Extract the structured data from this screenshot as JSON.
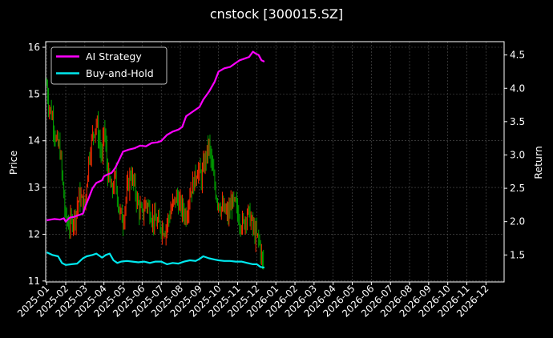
{
  "chart_data": {
    "type": "line",
    "title": "cnstock [300015.SZ]",
    "xlabel": "",
    "ylabel_left": "Price",
    "ylabel_right": "Return",
    "x_ticks": [
      "2025-01",
      "2025-02",
      "2025-03",
      "2025-04",
      "2025-05",
      "2025-06",
      "2025-07",
      "2025-08",
      "2025-09",
      "2025-10",
      "2025-11",
      "2025-12",
      "2026-01",
      "2026-02",
      "2026-03",
      "2026-04",
      "2026-05",
      "2026-06",
      "2026-07",
      "2026-08",
      "2026-09",
      "2026-10",
      "2026-11",
      "2026-12"
    ],
    "y_left_ticks": [
      "11",
      "12",
      "13",
      "14",
      "15",
      "16"
    ],
    "y_left_range": [
      10.98,
      16.12
    ],
    "y_right_ticks": [
      "1.5",
      "2.0",
      "2.5",
      "3.0",
      "3.5",
      "4.0",
      "4.5"
    ],
    "y_right_range": [
      1.095,
      4.7
    ],
    "x_range_months": [
      -0.05,
      23.95
    ],
    "grid": true,
    "legend_position": "upper-left",
    "legend": [
      "AI Strategy",
      "Buy-and-Hold"
    ],
    "colors": {
      "ai_strategy": "#ff00ff",
      "buy_and_hold": "#00e8ee",
      "candle_up": "#ff2a00",
      "candle_down": "#00a400",
      "background": "#000000",
      "grid": "#555555"
    },
    "series": [
      {
        "name": "AI Strategy",
        "axis": "right",
        "x_months": [
          0.0,
          0.4,
          0.7,
          0.9,
          1.0,
          1.2,
          1.4,
          1.7,
          1.9,
          2.0,
          2.2,
          2.4,
          2.6,
          2.9,
          3.0,
          3.2,
          3.4,
          3.6,
          3.8,
          4.0,
          4.3,
          4.6,
          4.9,
          5.2,
          5.5,
          5.8,
          6.0,
          6.3,
          6.6,
          6.9,
          7.1,
          7.3,
          7.5,
          7.8,
          8.0,
          8.2,
          8.5,
          8.8,
          9.0,
          9.3,
          9.6,
          9.9,
          10.1,
          10.4,
          10.6,
          10.8,
          10.95,
          11.1,
          11.25,
          11.4
        ],
        "values": [
          2.02,
          2.04,
          2.03,
          2.05,
          2.0,
          2.06,
          2.07,
          2.1,
          2.12,
          2.21,
          2.35,
          2.5,
          2.58,
          2.62,
          2.68,
          2.71,
          2.73,
          2.81,
          2.93,
          3.05,
          3.08,
          3.1,
          3.14,
          3.13,
          3.18,
          3.19,
          3.21,
          3.3,
          3.35,
          3.38,
          3.42,
          3.58,
          3.62,
          3.68,
          3.72,
          3.83,
          3.95,
          4.1,
          4.25,
          4.3,
          4.32,
          4.38,
          4.42,
          4.45,
          4.47,
          4.55,
          4.52,
          4.5,
          4.42,
          4.4
        ]
      },
      {
        "name": "Buy-and-Hold",
        "axis": "right",
        "x_months": [
          0.0,
          0.3,
          0.6,
          0.8,
          1.0,
          1.3,
          1.6,
          1.9,
          2.1,
          2.4,
          2.6,
          2.9,
          3.1,
          3.3,
          3.5,
          3.7,
          3.9,
          4.2,
          4.5,
          4.8,
          5.1,
          5.4,
          5.7,
          6.0,
          6.3,
          6.6,
          6.9,
          7.2,
          7.5,
          7.8,
          8.0,
          8.2,
          8.5,
          8.8,
          9.0,
          9.3,
          9.6,
          9.9,
          10.2,
          10.5,
          10.8,
          11.0,
          11.2,
          11.4
        ],
        "values": [
          1.54,
          1.5,
          1.48,
          1.38,
          1.35,
          1.36,
          1.37,
          1.45,
          1.48,
          1.5,
          1.52,
          1.46,
          1.5,
          1.52,
          1.42,
          1.38,
          1.4,
          1.41,
          1.4,
          1.39,
          1.4,
          1.38,
          1.4,
          1.4,
          1.36,
          1.38,
          1.37,
          1.4,
          1.42,
          1.41,
          1.44,
          1.48,
          1.45,
          1.43,
          1.42,
          1.41,
          1.41,
          1.4,
          1.4,
          1.38,
          1.36,
          1.36,
          1.32,
          1.31
        ]
      }
    ],
    "price_path": {
      "axis": "left",
      "x_months": [
        0.0,
        0.1,
        0.3,
        0.5,
        0.7,
        1.0,
        1.2,
        1.5,
        1.7,
        2.0,
        2.2,
        2.4,
        2.6,
        2.9,
        3.0,
        3.2,
        3.4,
        3.6,
        3.8,
        4.0,
        4.2,
        4.4,
        4.6,
        4.8,
        5.0,
        5.2,
        5.4,
        5.6,
        5.9,
        6.2,
        6.5,
        6.8,
        7.0,
        7.3,
        7.5,
        7.7,
        7.9,
        8.1,
        8.3,
        8.5,
        8.7,
        8.9,
        9.1,
        9.3,
        9.5,
        9.7,
        9.9,
        10.1,
        10.3,
        10.5,
        10.7,
        10.9,
        11.1,
        11.3,
        11.4
      ],
      "values": [
        15.2,
        14.8,
        14.5,
        14.0,
        13.8,
        12.3,
        12.2,
        12.4,
        12.8,
        12.6,
        13.6,
        14.1,
        14.4,
        13.6,
        14.3,
        13.3,
        12.9,
        13.2,
        12.5,
        12.3,
        12.9,
        13.3,
        13.0,
        12.6,
        12.4,
        12.7,
        12.5,
        12.3,
        12.2,
        12.1,
        12.5,
        12.8,
        12.6,
        12.4,
        12.9,
        13.1,
        13.4,
        13.2,
        13.6,
        13.9,
        13.3,
        12.8,
        12.6,
        12.5,
        12.4,
        12.7,
        12.6,
        12.3,
        12.2,
        12.5,
        12.3,
        12.0,
        11.9,
        11.4,
        11.3
      ]
    }
  }
}
